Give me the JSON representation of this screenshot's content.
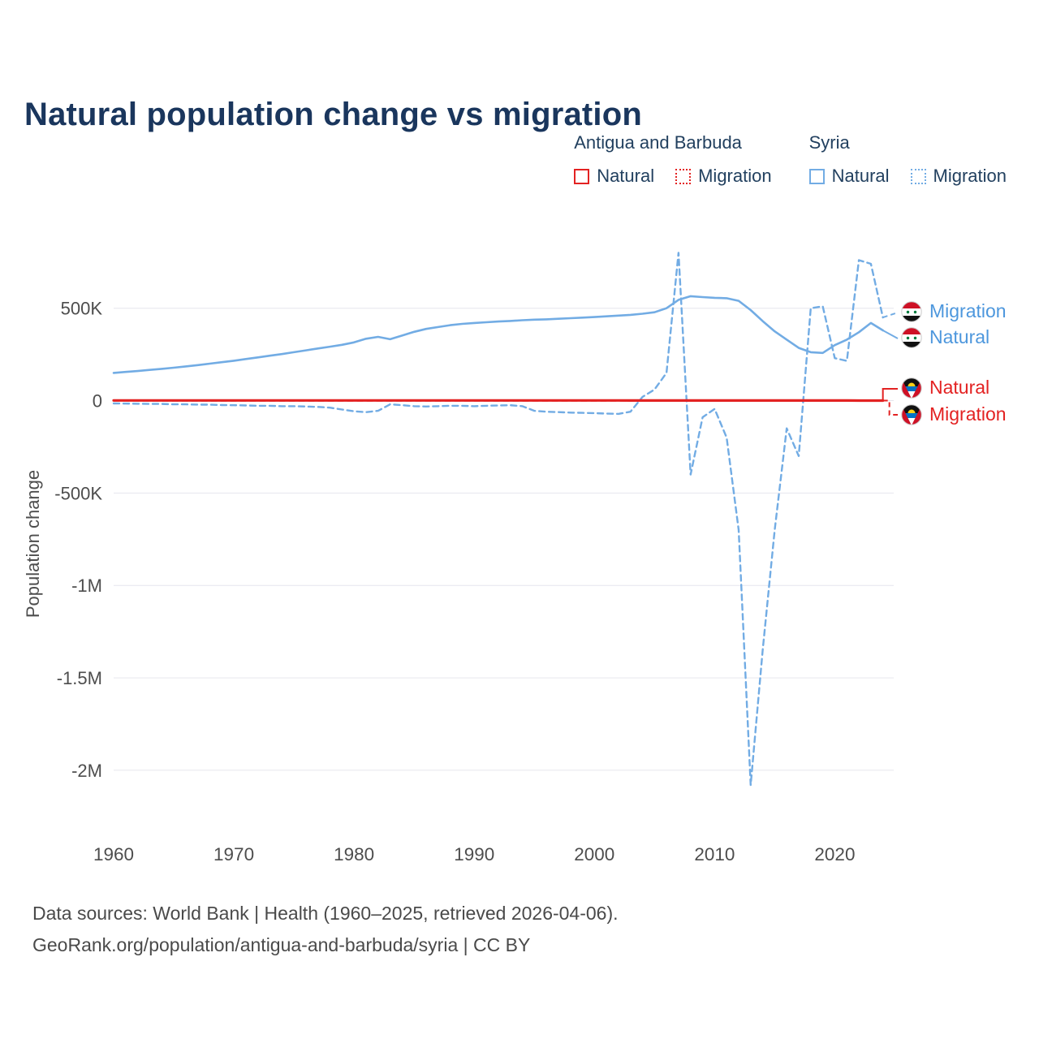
{
  "title": "Natural population change vs migration",
  "colors": {
    "antigua": "#e32222",
    "syria": "#72ace4",
    "title": "#1a365d",
    "axis_text": "#4d4d4d",
    "grid": "#e6e6ee",
    "footer": "#4a4a4a"
  },
  "legend": {
    "groups": [
      {
        "label": "Antigua and Barbuda",
        "items": [
          {
            "label": "Natural",
            "style": "solid"
          },
          {
            "label": "Migration",
            "style": "dashed"
          }
        ]
      },
      {
        "label": "Syria",
        "items": [
          {
            "label": "Natural",
            "style": "solid"
          },
          {
            "label": "Migration",
            "style": "dashed"
          }
        ]
      }
    ]
  },
  "end_labels": [
    {
      "label": "Migration",
      "country": "Syria",
      "color": "#4d97dd"
    },
    {
      "label": "Natural",
      "country": "Syria",
      "color": "#4d97dd"
    },
    {
      "label": "Natural",
      "country": "Antigua and Barbuda",
      "color": "#e32222"
    },
    {
      "label": "Migration",
      "country": "Antigua and Barbuda",
      "color": "#e32222"
    }
  ],
  "footer": {
    "line1": "Data sources: World Bank | Health (1960–2025, retrieved 2026-04-06).",
    "line2": "GeoRank.org/population/antigua-and-barbuda/syria | CC BY"
  },
  "chart_data": {
    "type": "line",
    "title": "Natural population change vs migration",
    "xlabel": "",
    "ylabel": "Population change",
    "units": "persons (values stored in thousands)",
    "value_multiplier": 1000,
    "grid": "horizontal",
    "xlim": [
      1960,
      2024.9
    ],
    "ylim": [
      -2400000,
      850000
    ],
    "xticks": [
      1960,
      1970,
      1980,
      1990,
      2000,
      2010,
      2020
    ],
    "yticks": [
      {
        "value": 500000,
        "label": "500K"
      },
      {
        "value": 0,
        "label": "0"
      },
      {
        "value": -500000,
        "label": "-500K"
      },
      {
        "value": -1000000,
        "label": "-1M"
      },
      {
        "value": -1500000,
        "label": "-1.5M"
      },
      {
        "value": -2000000,
        "label": "-2M"
      }
    ],
    "x": [
      1960,
      1961,
      1962,
      1963,
      1964,
      1965,
      1966,
      1967,
      1968,
      1969,
      1970,
      1971,
      1972,
      1973,
      1974,
      1975,
      1976,
      1977,
      1978,
      1979,
      1980,
      1981,
      1982,
      1983,
      1984,
      1985,
      1986,
      1987,
      1988,
      1989,
      1990,
      1991,
      1992,
      1993,
      1994,
      1995,
      1996,
      1997,
      1998,
      1999,
      2000,
      2001,
      2002,
      2003,
      2004,
      2005,
      2006,
      2007,
      2008,
      2009,
      2010,
      2011,
      2012,
      2013,
      2014,
      2015,
      2016,
      2017,
      2018,
      2019,
      2020,
      2021,
      2022,
      2023,
      2024
    ],
    "series": [
      {
        "name": "Syria Natural",
        "color": "#72ace4",
        "dash": false,
        "width": 2.6,
        "values_thousands": [
          150,
          155,
          160,
          166,
          172,
          178,
          185,
          192,
          200,
          208,
          216,
          225,
          234,
          243,
          252,
          262,
          272,
          282,
          292,
          302,
          315,
          335,
          345,
          332,
          352,
          372,
          388,
          398,
          408,
          415,
          420,
          424,
          428,
          431,
          435,
          438,
          440,
          443,
          446,
          449,
          452,
          456,
          460,
          464,
          470,
          478,
          500,
          545,
          565,
          560,
          556,
          554,
          540,
          490,
          430,
          375,
          330,
          285,
          262,
          258,
          300,
          330,
          370,
          420,
          380
        ]
      },
      {
        "name": "Syria Migration",
        "color": "#72ace4",
        "dash": true,
        "width": 2.4,
        "values_thousands": [
          -15,
          -16,
          -17,
          -18,
          -18,
          -20,
          -20,
          -22,
          -22,
          -24,
          -25,
          -26,
          -28,
          -28,
          -30,
          -30,
          -32,
          -34,
          -38,
          -48,
          -58,
          -62,
          -55,
          -20,
          -25,
          -30,
          -32,
          -30,
          -28,
          -28,
          -30,
          -28,
          -26,
          -25,
          -30,
          -55,
          -60,
          -62,
          -65,
          -66,
          -68,
          -70,
          -72,
          -60,
          20,
          60,
          150,
          800,
          -400,
          -90,
          -45,
          -200,
          -700,
          -2080,
          -1350,
          -700,
          -150,
          -300,
          500,
          510,
          230,
          215,
          760,
          740,
          450
        ]
      },
      {
        "name": "Antigua and Barbuda Migration",
        "color": "#e32222",
        "dash": true,
        "width": 2.4,
        "values_thousands": [
          0,
          0,
          0,
          0,
          0,
          0,
          0,
          0,
          0,
          0,
          0,
          0,
          0,
          0,
          0,
          0,
          0,
          0,
          0,
          0,
          0,
          0,
          0,
          0,
          0,
          0,
          0,
          0,
          0,
          0,
          0,
          0,
          0,
          0,
          0,
          0,
          0,
          0,
          0,
          0,
          0,
          0,
          0,
          0,
          0,
          0,
          0,
          0,
          0,
          0,
          0,
          0,
          0,
          0,
          0,
          0,
          0,
          0,
          0,
          0,
          0,
          0,
          0,
          0,
          0
        ]
      },
      {
        "name": "Antigua and Barbuda Natural",
        "color": "#e32222",
        "dash": false,
        "width": 3.2,
        "values_thousands": [
          1.2,
          1.2,
          1.2,
          1.2,
          1.1,
          1.1,
          1.1,
          1.1,
          1.1,
          1.1,
          1.1,
          1.1,
          1.0,
          1.0,
          1.0,
          1.0,
          1.0,
          1.0,
          1.0,
          1.0,
          1.0,
          1.0,
          1.0,
          1.0,
          1.0,
          1.0,
          1.0,
          1.0,
          1.0,
          1.0,
          1.0,
          1.0,
          1.0,
          1.0,
          1.0,
          0.9,
          0.9,
          0.9,
          0.9,
          0.9,
          0.9,
          0.9,
          0.9,
          0.8,
          0.8,
          0.8,
          0.8,
          0.8,
          0.8,
          0.7,
          0.7,
          0.7,
          0.7,
          0.7,
          0.6,
          0.6,
          0.6,
          0.5,
          0.5,
          0.5,
          0.4,
          0.4,
          0.3,
          0.3,
          0.3
        ]
      }
    ]
  }
}
